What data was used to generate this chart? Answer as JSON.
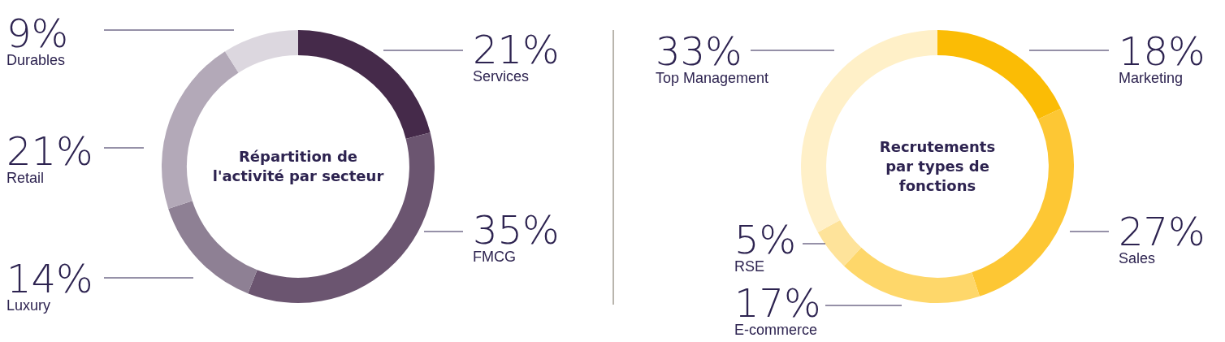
{
  "chart_data": [
    {
      "type": "donut",
      "title": "Répartition de l'activité par secteur",
      "categories": [
        "Services",
        "FMCG",
        "Luxury",
        "Retail",
        "Durables"
      ],
      "values": [
        21,
        35,
        14,
        21,
        9
      ],
      "value_labels": [
        "21%",
        "35%",
        "14%",
        "21%",
        "9%"
      ],
      "colors": [
        "#452a4a",
        "#6b5570",
        "#8e8094",
        "#b3a9b8",
        "#dcd7df"
      ],
      "legend": false
    },
    {
      "type": "donut",
      "title": "Recrutements par types de fonctions",
      "categories": [
        "Marketing",
        "Sales",
        "E-commerce",
        "RSE",
        "Top Management"
      ],
      "values": [
        18,
        27,
        17,
        5,
        33
      ],
      "value_labels": [
        "18%",
        "27%",
        "17%",
        "5%",
        "33%"
      ],
      "colors": [
        "#fbbc05",
        "#fdc734",
        "#fed76a",
        "#fee39a",
        "#fff0c8"
      ],
      "legend": false
    }
  ]
}
